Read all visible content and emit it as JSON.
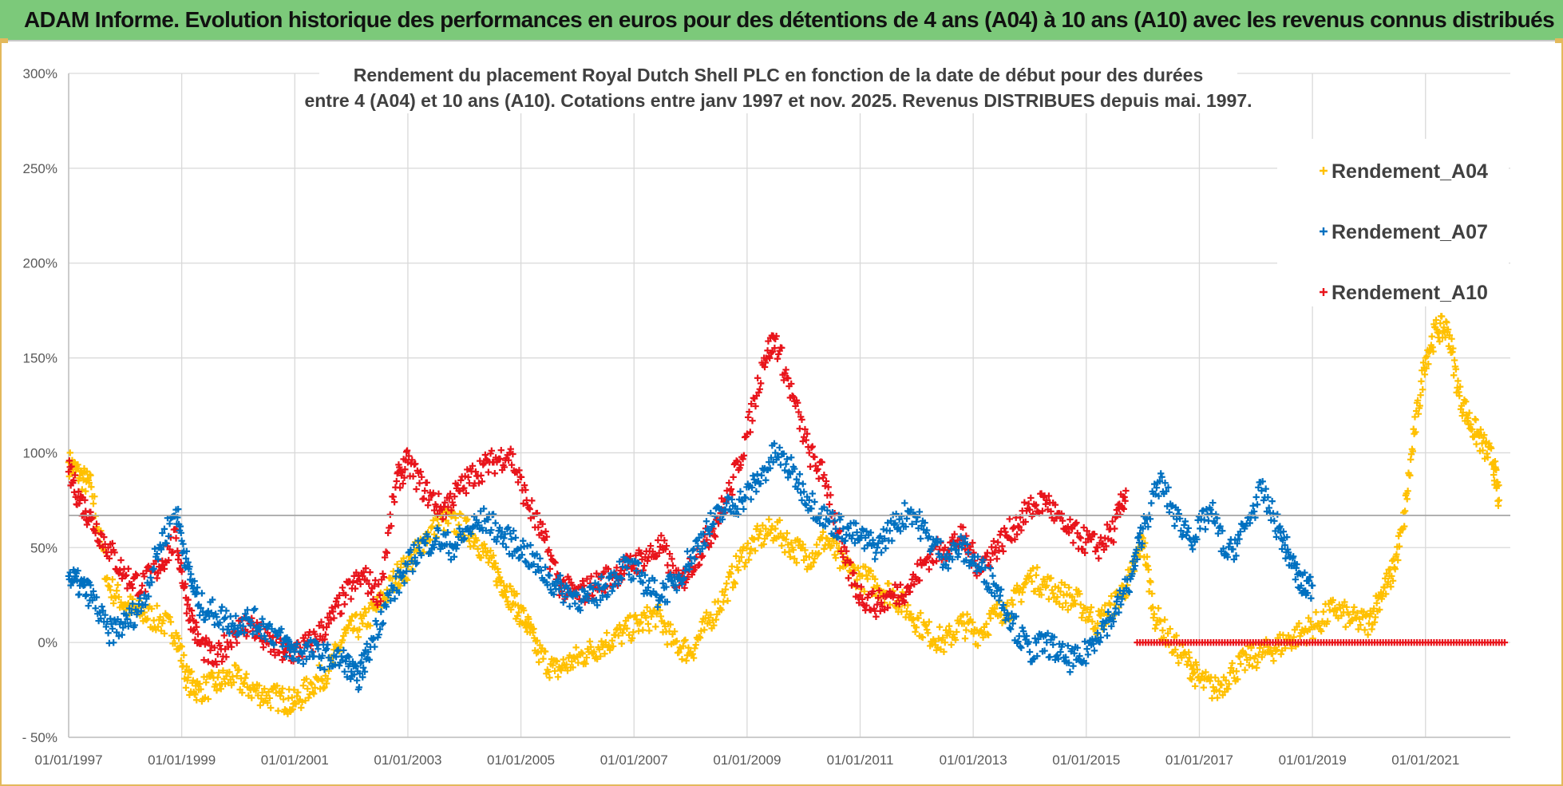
{
  "banner": {
    "title": "ADAM Informe. Evolution historique des performances en euros pour des détentions de 4 ans (A04) à 10 ans (A10) avec les revenus connus distribués"
  },
  "colors": {
    "a04": "#ffc000",
    "a07": "#0070c0",
    "a10": "#e8141b",
    "grid": "#d9d9d9",
    "refline": "#a6a6a6",
    "banner": "#7cc97a",
    "frame": "#e3b95c"
  },
  "chart_data": {
    "type": "scatter",
    "title_lines": [
      "Rendement du placement Royal Dutch Shell PLC en fonction de la date de début pour des durées",
      "entre 4 (A04) et 10 ans (A10).  Cotations entre janv 1997 et nov. 2025. Revenus DISTRIBUES depuis mai. 1997."
    ],
    "xlabel": "",
    "ylabel": "",
    "xlim": [
      1997.0,
      2022.5
    ],
    "ylim": [
      -50,
      300
    ],
    "x_tick_labels": [
      "01/01/1997",
      "01/01/1999",
      "01/01/2001",
      "01/01/2003",
      "01/01/2005",
      "01/01/2007",
      "01/01/2009",
      "01/01/2011",
      "01/01/2013",
      "01/01/2015",
      "01/01/2017",
      "01/01/2019",
      "01/01/2021"
    ],
    "x_tick_values": [
      1997,
      1999,
      2001,
      2003,
      2005,
      2007,
      2009,
      2011,
      2013,
      2015,
      2017,
      2019,
      2021
    ],
    "y_tick_labels": [
      "300%",
      "250%",
      "200%",
      "150%",
      "100%",
      "50%",
      "0%",
      "- 50%"
    ],
    "y_tick_values": [
      300,
      250,
      200,
      150,
      100,
      50,
      0,
      -50
    ],
    "reference_line": 67,
    "legend_position": "top-right",
    "marker": "+",
    "series": [
      {
        "name": "Rendement_A04",
        "x": [
          1997.0,
          1997.2,
          1997.4,
          1997.7,
          1998.0,
          1998.3,
          1998.6,
          1998.9,
          1999.1,
          1999.3,
          1999.6,
          1999.9,
          2000.2,
          2000.5,
          2000.8,
          2001.0,
          2001.3,
          2001.6,
          2001.9,
          2002.2,
          2002.5,
          2002.8,
          2003.0,
          2003.3,
          2003.6,
          2003.9,
          2004.2,
          2004.5,
          2004.7,
          2004.9,
          2005.1,
          2005.3,
          2005.6,
          2005.9,
          2006.2,
          2006.5,
          2006.8,
          2007.1,
          2007.4,
          2007.7,
          2008.0,
          2008.3,
          2008.6,
          2008.9,
          2009.2,
          2009.5,
          2009.8,
          2010.1,
          2010.4,
          2010.7,
          2011.0,
          2011.3,
          2011.6,
          2011.9,
          2012.2,
          2012.5,
          2012.8,
          2013.1,
          2013.4,
          2013.7,
          2014.0,
          2014.3,
          2014.6,
          2014.9,
          2015.2,
          2015.5,
          2015.8,
          2016.0,
          2016.2,
          2016.5,
          2016.8,
          2017.0,
          2017.3,
          2017.6,
          2017.9,
          2018.2,
          2018.5,
          2018.8,
          2019.1,
          2019.4,
          2019.7,
          2020.0,
          2020.2,
          2020.4,
          2020.6,
          2020.8,
          2021.0,
          2021.2,
          2021.4,
          2021.6,
          2021.8,
          2022.0,
          2022.2,
          2022.3
        ],
        "y": [
          95,
          88,
          82,
          30,
          20,
          15,
          12,
          5,
          -20,
          -25,
          -22,
          -18,
          -24,
          -28,
          -30,
          -32,
          -22,
          -15,
          5,
          10,
          20,
          35,
          40,
          55,
          65,
          62,
          55,
          40,
          30,
          20,
          10,
          -5,
          -15,
          -10,
          -5,
          0,
          5,
          10,
          15,
          0,
          -5,
          10,
          25,
          45,
          55,
          60,
          50,
          45,
          55,
          40,
          35,
          30,
          25,
          15,
          5,
          0,
          10,
          5,
          15,
          20,
          35,
          30,
          25,
          20,
          10,
          20,
          35,
          55,
          15,
          0,
          -10,
          -20,
          -25,
          -15,
          -8,
          -5,
          0,
          5,
          10,
          18,
          12,
          10,
          25,
          35,
          60,
          110,
          150,
          165,
          165,
          130,
          115,
          105,
          95,
          75
        ]
      },
      {
        "name": "Rendement_A07",
        "x": [
          1997.0,
          1997.2,
          1997.4,
          1997.7,
          1998.0,
          1998.3,
          1998.6,
          1998.9,
          1999.1,
          1999.3,
          1999.6,
          1999.9,
          2000.2,
          2000.5,
          2000.8,
          2001.0,
          2001.3,
          2001.6,
          2001.9,
          2002.1,
          2002.3,
          2002.6,
          2002.9,
          2003.2,
          2003.5,
          2003.8,
          2004.1,
          2004.4,
          2004.7,
          2005.0,
          2005.3,
          2005.6,
          2005.9,
          2006.2,
          2006.5,
          2006.8,
          2007.1,
          2007.4,
          2007.7,
          2008.0,
          2008.3,
          2008.6,
          2008.9,
          2009.2,
          2009.5,
          2009.8,
          2010.1,
          2010.4,
          2010.7,
          2011.0,
          2011.3,
          2011.6,
          2011.9,
          2012.2,
          2012.5,
          2012.8,
          2013.1,
          2013.4,
          2013.7,
          2014.0,
          2014.3,
          2014.6,
          2014.9,
          2015.2,
          2015.5,
          2015.8,
          2016.0,
          2016.3,
          2016.6,
          2016.9,
          2017.2,
          2017.5,
          2017.8,
          2018.1,
          2018.4,
          2018.6,
          2018.8,
          2019.0
        ],
        "y": [
          35,
          30,
          25,
          5,
          10,
          20,
          50,
          70,
          40,
          20,
          15,
          10,
          12,
          8,
          0,
          -5,
          -5,
          -8,
          -10,
          -20,
          -5,
          20,
          35,
          50,
          55,
          50,
          60,
          65,
          55,
          50,
          40,
          30,
          25,
          22,
          30,
          40,
          35,
          25,
          30,
          45,
          60,
          70,
          75,
          85,
          100,
          90,
          75,
          65,
          60,
          55,
          50,
          62,
          70,
          55,
          45,
          50,
          40,
          30,
          10,
          -5,
          0,
          -8,
          -10,
          5,
          15,
          35,
          60,
          85,
          65,
          55,
          70,
          45,
          60,
          80,
          60,
          45,
          30,
          30
        ]
      },
      {
        "name": "Rendement_A10",
        "x": [
          1997.0,
          1997.2,
          1997.4,
          1997.7,
          1998.0,
          1998.3,
          1998.6,
          1998.9,
          1999.1,
          1999.3,
          1999.6,
          1999.9,
          2000.2,
          2000.5,
          2000.8,
          2001.0,
          2001.3,
          2001.6,
          2001.9,
          2002.2,
          2002.5,
          2002.8,
          2003.0,
          2003.3,
          2003.6,
          2003.9,
          2004.2,
          2004.5,
          2004.8,
          2005.1,
          2005.4,
          2005.7,
          2006.0,
          2006.3,
          2006.6,
          2006.9,
          2007.2,
          2007.5,
          2007.8,
          2008.1,
          2008.4,
          2008.7,
          2009.0,
          2009.3,
          2009.5,
          2009.8,
          2010.1,
          2010.4,
          2010.7,
          2011.0,
          2011.3,
          2011.6,
          2011.9,
          2012.2,
          2012.5,
          2012.8,
          2013.1,
          2013.4,
          2013.7,
          2014.0,
          2014.3,
          2014.6,
          2014.9,
          2015.2,
          2015.5,
          2015.7
        ],
        "y": [
          90,
          75,
          65,
          50,
          35,
          30,
          40,
          55,
          20,
          0,
          -10,
          5,
          10,
          0,
          -5,
          -5,
          0,
          10,
          25,
          35,
          25,
          85,
          95,
          80,
          70,
          80,
          90,
          95,
          100,
          75,
          55,
          30,
          25,
          30,
          35,
          40,
          45,
          50,
          30,
          45,
          60,
          80,
          110,
          150,
          160,
          130,
          100,
          85,
          45,
          25,
          20,
          25,
          30,
          45,
          50,
          55,
          40,
          50,
          60,
          70,
          75,
          60,
          55,
          50,
          60,
          80
        ]
      }
    ],
    "flat_segment": {
      "series": "Rendement_A10",
      "x": [
        2015.9,
        2022.4
      ],
      "y": 0
    }
  }
}
